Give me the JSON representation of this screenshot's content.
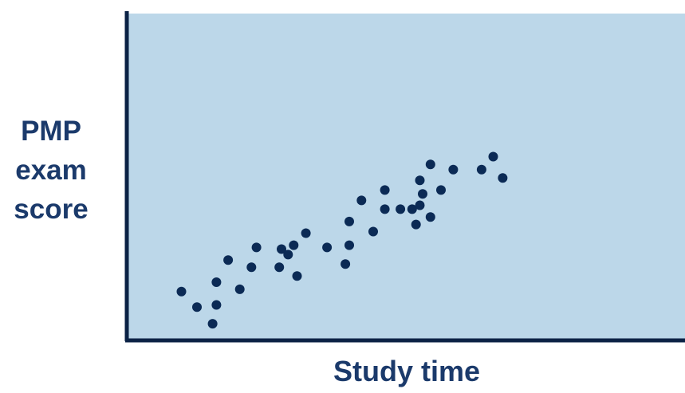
{
  "chart_data": {
    "type": "scatter",
    "title": "",
    "xlabel": "Study time",
    "ylabel_lines": [
      "PMP",
      "exam",
      "score"
    ],
    "xlim": [
      0,
      100
    ],
    "ylim": [
      0,
      100
    ],
    "grid": false,
    "plot_background": "#bcd7e9",
    "axis_color": "#0b2245",
    "point_color": "#0b2a55",
    "label_color": "#1b3a6b",
    "series": [
      {
        "points": [
          {
            "x": 9.4,
            "y": 14.3
          },
          {
            "x": 12.2,
            "y": 9.5
          },
          {
            "x": 15.0,
            "y": 4.4
          },
          {
            "x": 15.7,
            "y": 10.2
          },
          {
            "x": 15.7,
            "y": 17.2
          },
          {
            "x": 17.8,
            "y": 24.0
          },
          {
            "x": 19.9,
            "y": 15.0
          },
          {
            "x": 22.0,
            "y": 21.8
          },
          {
            "x": 22.9,
            "y": 27.9
          },
          {
            "x": 27.0,
            "y": 21.8
          },
          {
            "x": 27.4,
            "y": 27.4
          },
          {
            "x": 28.6,
            "y": 25.7
          },
          {
            "x": 29.6,
            "y": 28.6
          },
          {
            "x": 30.2,
            "y": 19.1
          },
          {
            "x": 31.8,
            "y": 32.3
          },
          {
            "x": 35.6,
            "y": 27.9
          },
          {
            "x": 38.9,
            "y": 22.8
          },
          {
            "x": 39.6,
            "y": 28.6
          },
          {
            "x": 39.6,
            "y": 35.9
          },
          {
            "x": 41.8,
            "y": 42.4
          },
          {
            "x": 43.9,
            "y": 32.8
          },
          {
            "x": 46.0,
            "y": 45.6
          },
          {
            "x": 46.0,
            "y": 39.7
          },
          {
            "x": 48.8,
            "y": 39.7
          },
          {
            "x": 50.9,
            "y": 39.7
          },
          {
            "x": 51.6,
            "y": 35.0
          },
          {
            "x": 52.3,
            "y": 40.9
          },
          {
            "x": 52.3,
            "y": 48.6
          },
          {
            "x": 52.8,
            "y": 44.4
          },
          {
            "x": 54.2,
            "y": 53.5
          },
          {
            "x": 54.2,
            "y": 37.3
          },
          {
            "x": 56.1,
            "y": 45.6
          },
          {
            "x": 58.3,
            "y": 51.9
          },
          {
            "x": 63.4,
            "y": 51.9
          },
          {
            "x": 65.5,
            "y": 55.9
          },
          {
            "x": 67.2,
            "y": 49.3
          }
        ]
      }
    ]
  }
}
